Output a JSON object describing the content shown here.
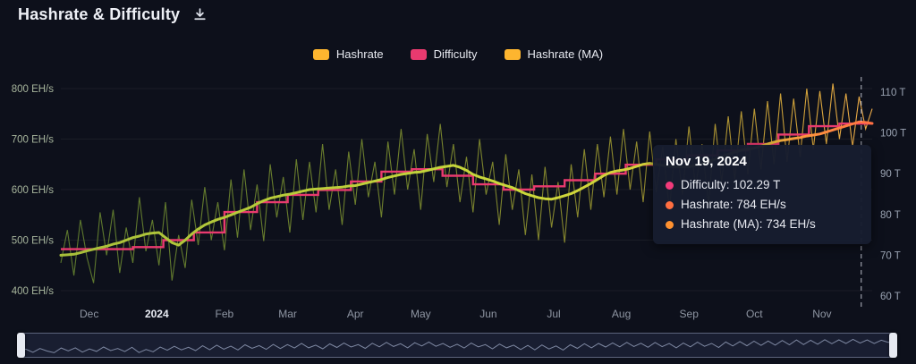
{
  "header": {
    "title": "Hashrate & Difficulty"
  },
  "legend": {
    "items": [
      {
        "label": "Hashrate",
        "color": "#fdb52f"
      },
      {
        "label": "Difficulty",
        "color": "#e93a6f"
      },
      {
        "label": "Hashrate (MA)",
        "color": "#fdb52f"
      }
    ]
  },
  "tooltip": {
    "date": "Nov 19, 2024",
    "rows": [
      {
        "text": "Difficulty: 102.29 T",
        "color": "#f23a7b"
      },
      {
        "text": "Hashrate: 784 EH/s",
        "color": "#ff6e40"
      },
      {
        "text": "Hashrate (MA): 734 EH/s",
        "color": "#ff9130"
      }
    ]
  },
  "colors": {
    "difficulty": "#e93a6f",
    "left_tick": "#a7b59c",
    "right_tick": "#9aa3b2",
    "x_tick": "#8f96a3",
    "x_tick_emphasis": "#e8ebf3",
    "crosshair": "rgba(225,229,240,0.8)",
    "nav_line": "rgba(160,172,200,0.75)",
    "raw_gradient": [
      [
        "0%",
        "#62802f"
      ],
      [
        "40%",
        "#76892e"
      ],
      [
        "70%",
        "#99932f"
      ],
      [
        "85%",
        "#c5a236"
      ],
      [
        "93%",
        "#eab23f"
      ],
      [
        "100%",
        "#ffb74d"
      ]
    ],
    "ma_gradient": [
      [
        "0%",
        "#a8bf3a"
      ],
      [
        "55%",
        "#c9d83b"
      ],
      [
        "78%",
        "#d9cf3a"
      ],
      [
        "87%",
        "#e8bd3c"
      ],
      [
        "91%",
        "#ff9a3f"
      ],
      [
        "100%",
        "#ff6f42"
      ]
    ]
  },
  "chart_data": {
    "type": "line",
    "title": "Hashrate & Difficulty",
    "days_total": 372,
    "crosshair_day": 367,
    "grid": true,
    "legend_position": "top",
    "left_axis": {
      "label": "EH/s",
      "ticks": [
        800,
        700,
        600,
        500,
        400
      ],
      "tick_suffix": " EH/s",
      "range": [
        365,
        816
      ]
    },
    "right_axis": {
      "label": "T",
      "ticks": [
        110,
        100,
        90,
        80,
        70,
        60
      ],
      "tick_suffix": " T",
      "range": [
        57.5,
        113.5
      ]
    },
    "x_axis": {
      "start_date": "2023-11-18",
      "ticks": [
        {
          "label": "Dec",
          "day": 13
        },
        {
          "label": "2024",
          "day": 44,
          "emphasis": true
        },
        {
          "label": "Feb",
          "day": 75
        },
        {
          "label": "Mar",
          "day": 104
        },
        {
          "label": "Apr",
          "day": 135
        },
        {
          "label": "May",
          "day": 165
        },
        {
          "label": "Jun",
          "day": 196
        },
        {
          "label": "Jul",
          "day": 226
        },
        {
          "label": "Aug",
          "day": 257
        },
        {
          "label": "Sep",
          "day": 288
        },
        {
          "label": "Oct",
          "day": 318
        },
        {
          "label": "Nov",
          "day": 349
        }
      ]
    },
    "series": [
      {
        "name": "Hashrate",
        "unit": "EH/s",
        "interval_days": 3,
        "values": [
          455,
          520,
          430,
          540,
          465,
          415,
          555,
          470,
          560,
          435,
          525,
          455,
          585,
          478,
          540,
          450,
          575,
          420,
          510,
          445,
          580,
          490,
          605,
          500,
          575,
          480,
          620,
          505,
          640,
          520,
          610,
          498,
          650,
          545,
          625,
          515,
          660,
          540,
          655,
          555,
          690,
          560,
          640,
          530,
          675,
          570,
          700,
          585,
          655,
          545,
          695,
          590,
          720,
          600,
          680,
          560,
          710,
          615,
          730,
          605,
          690,
          575,
          665,
          555,
          700,
          590,
          655,
          530,
          670,
          560,
          640,
          510,
          630,
          500,
          645,
          525,
          615,
          495,
          650,
          545,
          680,
          560,
          690,
          585,
          705,
          590,
          720,
          600,
          695,
          575,
          715,
          595,
          685,
          560,
          700,
          590,
          725,
          605,
          690,
          570,
          730,
          615,
          745,
          620,
          755,
          630,
          760,
          640,
          775,
          650,
          790,
          655,
          780,
          665,
          800,
          680,
          795,
          690,
          810,
          700,
          790,
          685,
          784,
          720,
          760
        ]
      },
      {
        "name": "Hashrate (MA)",
        "unit": "EH/s",
        "interval_days": 3,
        "values": [
          470,
          471,
          472,
          475,
          479,
          482,
          485,
          488,
          492,
          495,
          500,
          505,
          508,
          512,
          514,
          515,
          505,
          495,
          490,
          500,
          512,
          522,
          530,
          536,
          541,
          545,
          550,
          555,
          560,
          565,
          572,
          578,
          583,
          586,
          589,
          591,
          594,
          597,
          600,
          601,
          602,
          603,
          604,
          605,
          607,
          608,
          611,
          614,
          617,
          620,
          624,
          627,
          630,
          632,
          634,
          635,
          638,
          641,
          644,
          646,
          648,
          644,
          638,
          630,
          625,
          621,
          617,
          612,
          608,
          604,
          598,
          592,
          588,
          584,
          582,
          581,
          584,
          588,
          592,
          598,
          605,
          612,
          620,
          628,
          634,
          637,
          639,
          642,
          646,
          650,
          652,
          650,
          648,
          646,
          645,
          645,
          645,
          648,
          652,
          656,
          660,
          665,
          670,
          674,
          678,
          680,
          682,
          686,
          690,
          694,
          697,
          699,
          701,
          703,
          706,
          708,
          710,
          714,
          718,
          722,
          726,
          730,
          734,
          733,
          731
        ]
      },
      {
        "name": "Difficulty",
        "unit": "T",
        "steps": [
          [
            0,
            71.5
          ],
          [
            33,
            72.0
          ],
          [
            47,
            73.7
          ],
          [
            61,
            75.6
          ],
          [
            75,
            80.6
          ],
          [
            90,
            83.0
          ],
          [
            104,
            84.8
          ],
          [
            118,
            86.0
          ],
          [
            133,
            88.1
          ],
          [
            147,
            90.5
          ],
          [
            161,
            91.1
          ],
          [
            175,
            89.5
          ],
          [
            189,
            87.4
          ],
          [
            203,
            86.1
          ],
          [
            217,
            86.9
          ],
          [
            231,
            88.4
          ],
          [
            245,
            90.0
          ],
          [
            259,
            92.2
          ],
          [
            273,
            93.5
          ],
          [
            287,
            94.5
          ],
          [
            301,
            95.7
          ],
          [
            315,
            97.3
          ],
          [
            329,
            99.6
          ],
          [
            343,
            101.65
          ],
          [
            357,
            102.29
          ]
        ]
      }
    ]
  }
}
